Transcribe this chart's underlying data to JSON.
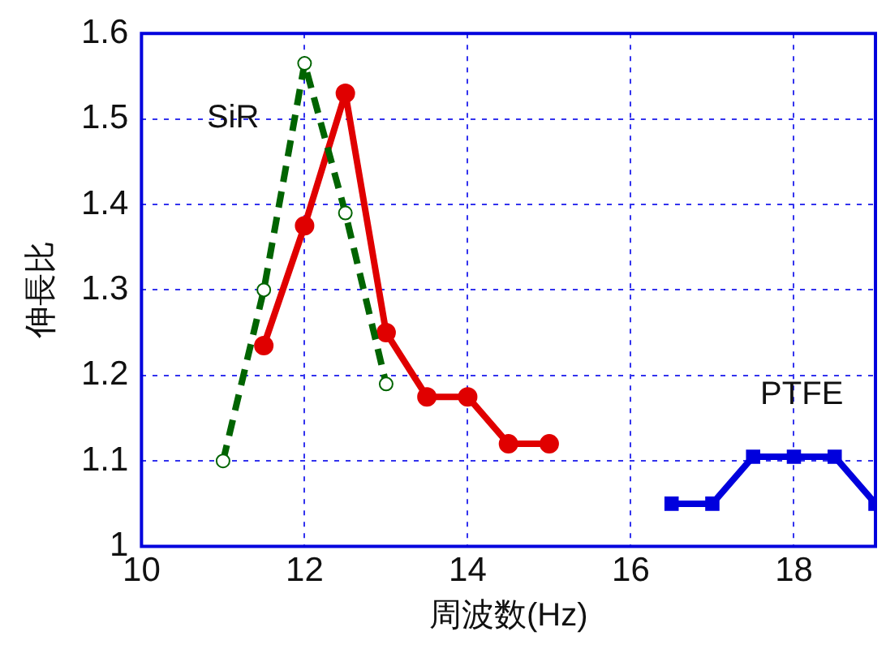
{
  "chart_data": {
    "type": "line",
    "xlabel": "周波数(Hz)",
    "ylabel": "伸長比",
    "xlim": [
      10,
      19
    ],
    "xticks": [
      10,
      12,
      14,
      16,
      18
    ],
    "ylim": [
      1,
      1.6
    ],
    "yticks": [
      1,
      1.1,
      1.2,
      1.3,
      1.4,
      1.5,
      1.6
    ],
    "grid": true,
    "legend": false,
    "series": [
      {
        "name": "SiR",
        "color": "#006400",
        "x": [
          11,
          11.5,
          12,
          12.5,
          13
        ],
        "values": [
          1.1,
          1.3,
          1.565,
          1.39,
          1.19
        ],
        "marker": "circle",
        "line_style": "dashed"
      },
      {
        "color": "#e00000",
        "x": [
          11.5,
          12,
          12.5,
          13,
          13.5,
          14,
          14.5,
          15
        ],
        "values": [
          1.235,
          1.375,
          1.53,
          1.25,
          1.175,
          1.175,
          1.12,
          1.12
        ],
        "marker": "circle",
        "line_style": "solid"
      },
      {
        "name": "PTFE",
        "color": "#0000dd",
        "x": [
          16.5,
          17,
          17.5,
          18,
          18.5,
          19
        ],
        "values": [
          1.05,
          1.05,
          1.105,
          1.105,
          1.105,
          1.05
        ],
        "marker": "square",
        "line_style": "solid"
      }
    ]
  }
}
